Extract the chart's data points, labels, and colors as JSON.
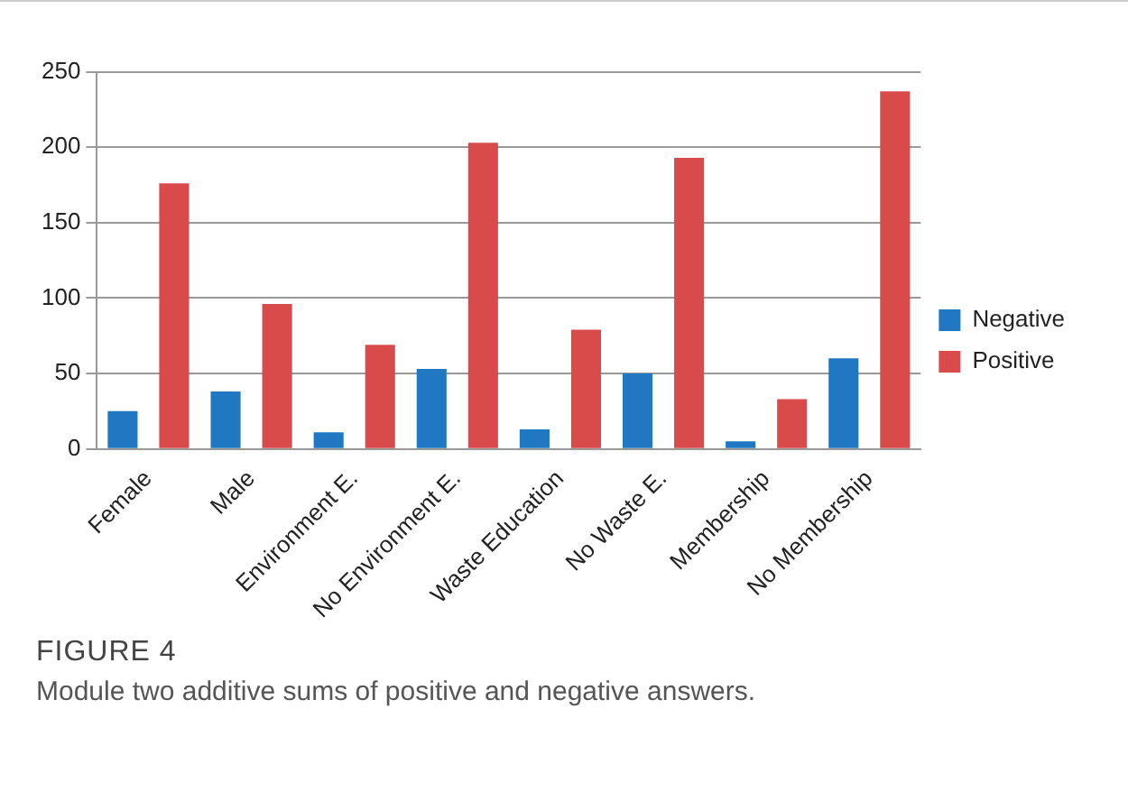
{
  "chart_data": {
    "type": "bar",
    "categories": [
      "Female",
      "Male",
      "Environment E.",
      "No Environment E.",
      "Waste Education",
      "No Waste E.",
      "Membership",
      "No Membership"
    ],
    "series": [
      {
        "name": "Negative",
        "color": "#1f78c1",
        "values": [
          25,
          38,
          11,
          53,
          13,
          50,
          5,
          60
        ]
      },
      {
        "name": "Positive",
        "color": "#d94b4b",
        "values": [
          176,
          96,
          69,
          203,
          79,
          193,
          33,
          237
        ]
      }
    ],
    "ylim": [
      0,
      250
    ],
    "yticks": [
      0,
      50,
      100,
      150,
      200,
      250
    ],
    "grid": "y",
    "legend": "right",
    "annotations": [
      "FIGURE 4",
      "Module two additive sums of positive and negative answers."
    ]
  }
}
